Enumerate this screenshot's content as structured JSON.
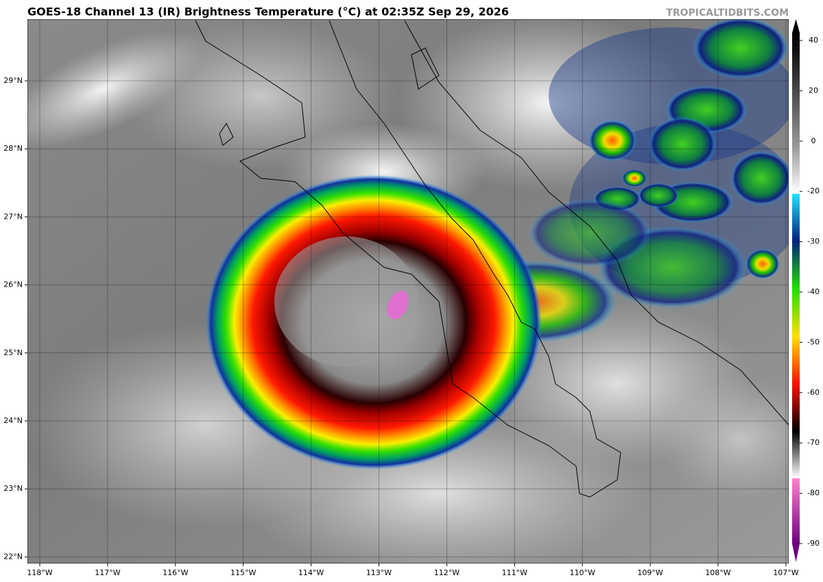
{
  "header": {
    "title": "GOES-18 Channel 13 (IR) Brightness Temperature (°C) at 02:35Z Sep 29, 2026",
    "watermark": "TROPICALTIDBITS.COM"
  },
  "map": {
    "lat_ticks": [
      {
        "value": 29,
        "label": "29°N"
      },
      {
        "value": 28,
        "label": "28°N"
      },
      {
        "value": 27,
        "label": "27°N"
      },
      {
        "value": 26,
        "label": "26°N"
      },
      {
        "value": 25,
        "label": "25°N"
      },
      {
        "value": 24,
        "label": "24°N"
      },
      {
        "value": 23,
        "label": "23°N"
      },
      {
        "value": 22,
        "label": "22°N"
      }
    ],
    "lon_ticks": [
      {
        "value": -118,
        "label": "118°W"
      },
      {
        "value": -117,
        "label": "117°W"
      },
      {
        "value": -116,
        "label": "116°W"
      },
      {
        "value": -115,
        "label": "115°W"
      },
      {
        "value": -114,
        "label": "114°W"
      },
      {
        "value": -113,
        "label": "113°W"
      },
      {
        "value": -112,
        "label": "112°W"
      },
      {
        "value": -111,
        "label": "111°W"
      },
      {
        "value": -110,
        "label": "110°W"
      },
      {
        "value": -109,
        "label": "109°W"
      },
      {
        "value": -108,
        "label": "108°W"
      },
      {
        "value": -107,
        "label": "107°W"
      }
    ]
  },
  "colorbar": {
    "ticks": [
      40,
      20,
      0,
      -20,
      -30,
      -40,
      -50,
      -60,
      -70,
      -80,
      -90
    ]
  }
}
